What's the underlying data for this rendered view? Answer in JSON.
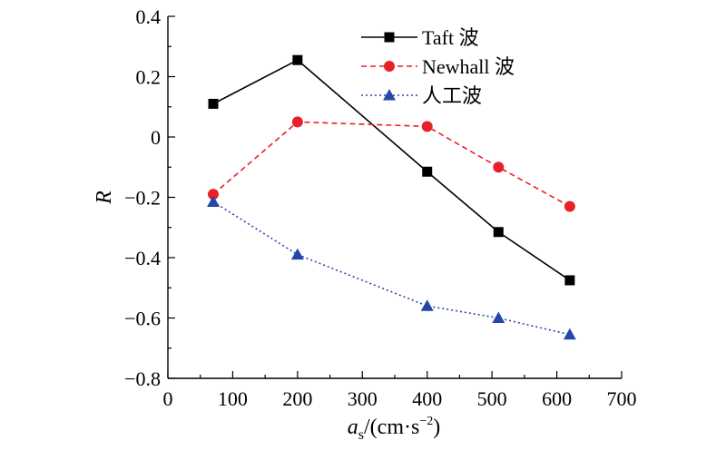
{
  "chart_data": {
    "type": "line",
    "x": [
      70,
      200,
      400,
      510,
      620
    ],
    "xlim": [
      0,
      700
    ],
    "ylim": [
      -0.8,
      0.4
    ],
    "xticks": [
      0,
      100,
      200,
      300,
      400,
      500,
      600,
      700
    ],
    "yticks": [
      -0.8,
      -0.6,
      -0.4,
      -0.2,
      0,
      0.2,
      0.4
    ],
    "xtick_labels": [
      "0",
      "100",
      "200",
      "300",
      "400",
      "500",
      "600",
      "700"
    ],
    "ytick_labels": [
      "−0.8",
      "−0.6",
      "−0.4",
      "−0.2",
      "0",
      "0.2",
      "0.4"
    ],
    "ylabel": "R",
    "xlabel": {
      "var": "a",
      "sub": "s",
      "unit": "/(cm·s",
      "sup": "−2",
      "close": ")"
    },
    "legend_position": "top-center",
    "series": [
      {
        "name": "Taft 波",
        "values": [
          0.11,
          0.255,
          -0.115,
          -0.315,
          -0.475
        ],
        "color": "#000000",
        "marker": "square",
        "dash": "solid"
      },
      {
        "name": "Newhall 波",
        "values": [
          -0.19,
          0.05,
          0.035,
          -0.1,
          -0.23
        ],
        "color": "#e8202a",
        "marker": "circle",
        "dash": "dashed"
      },
      {
        "name": "人工波",
        "values": [
          -0.215,
          -0.39,
          -0.56,
          -0.6,
          -0.655
        ],
        "color": "#2746a8",
        "marker": "triangle",
        "dash": "dotted"
      }
    ]
  }
}
